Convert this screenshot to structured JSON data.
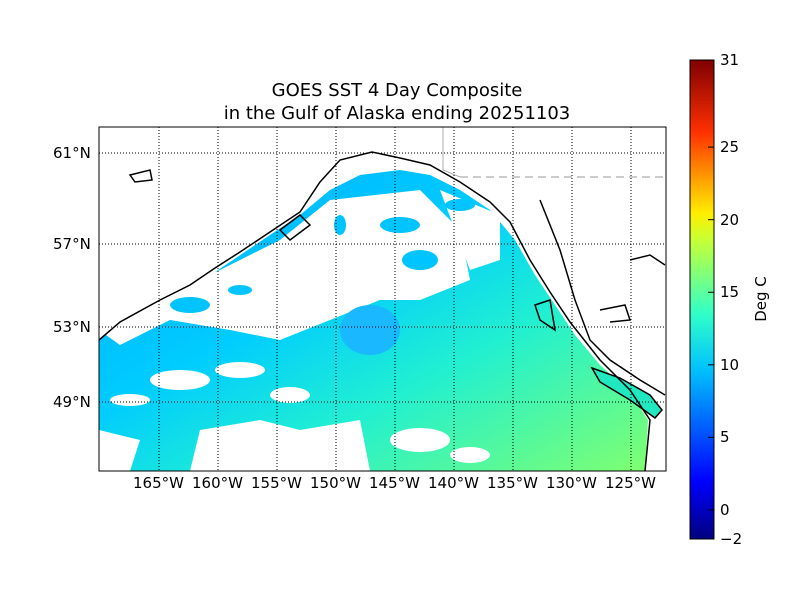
{
  "title_line1": "GOES SST 4 Day Composite",
  "title_line2": "in the Gulf of Alaska ending 20251103",
  "lat_labels": [
    "61°N",
    "57°N",
    "53°N",
    "49°N"
  ],
  "lon_labels": [
    "165°W",
    "160°W",
    "155°W",
    "150°W",
    "145°W",
    "140°W",
    "135°W",
    "130°W",
    "125°W"
  ],
  "colorbar": {
    "label": "Deg C",
    "ticks": [
      "31",
      "25",
      "20",
      "15",
      "10",
      "5",
      "0",
      "−2"
    ],
    "range": [
      -2,
      31
    ],
    "colormap": "jet"
  },
  "map": {
    "region": "Gulf of Alaska",
    "lat_gridlines": [
      61,
      57,
      53,
      49
    ],
    "lon_gridlines": [
      -165,
      -160,
      -155,
      -150,
      -145,
      -140,
      -135,
      -130,
      -125
    ],
    "land_color": "#ffffff",
    "nodata_color": "#ffffff",
    "coast_color": "#000000"
  }
}
